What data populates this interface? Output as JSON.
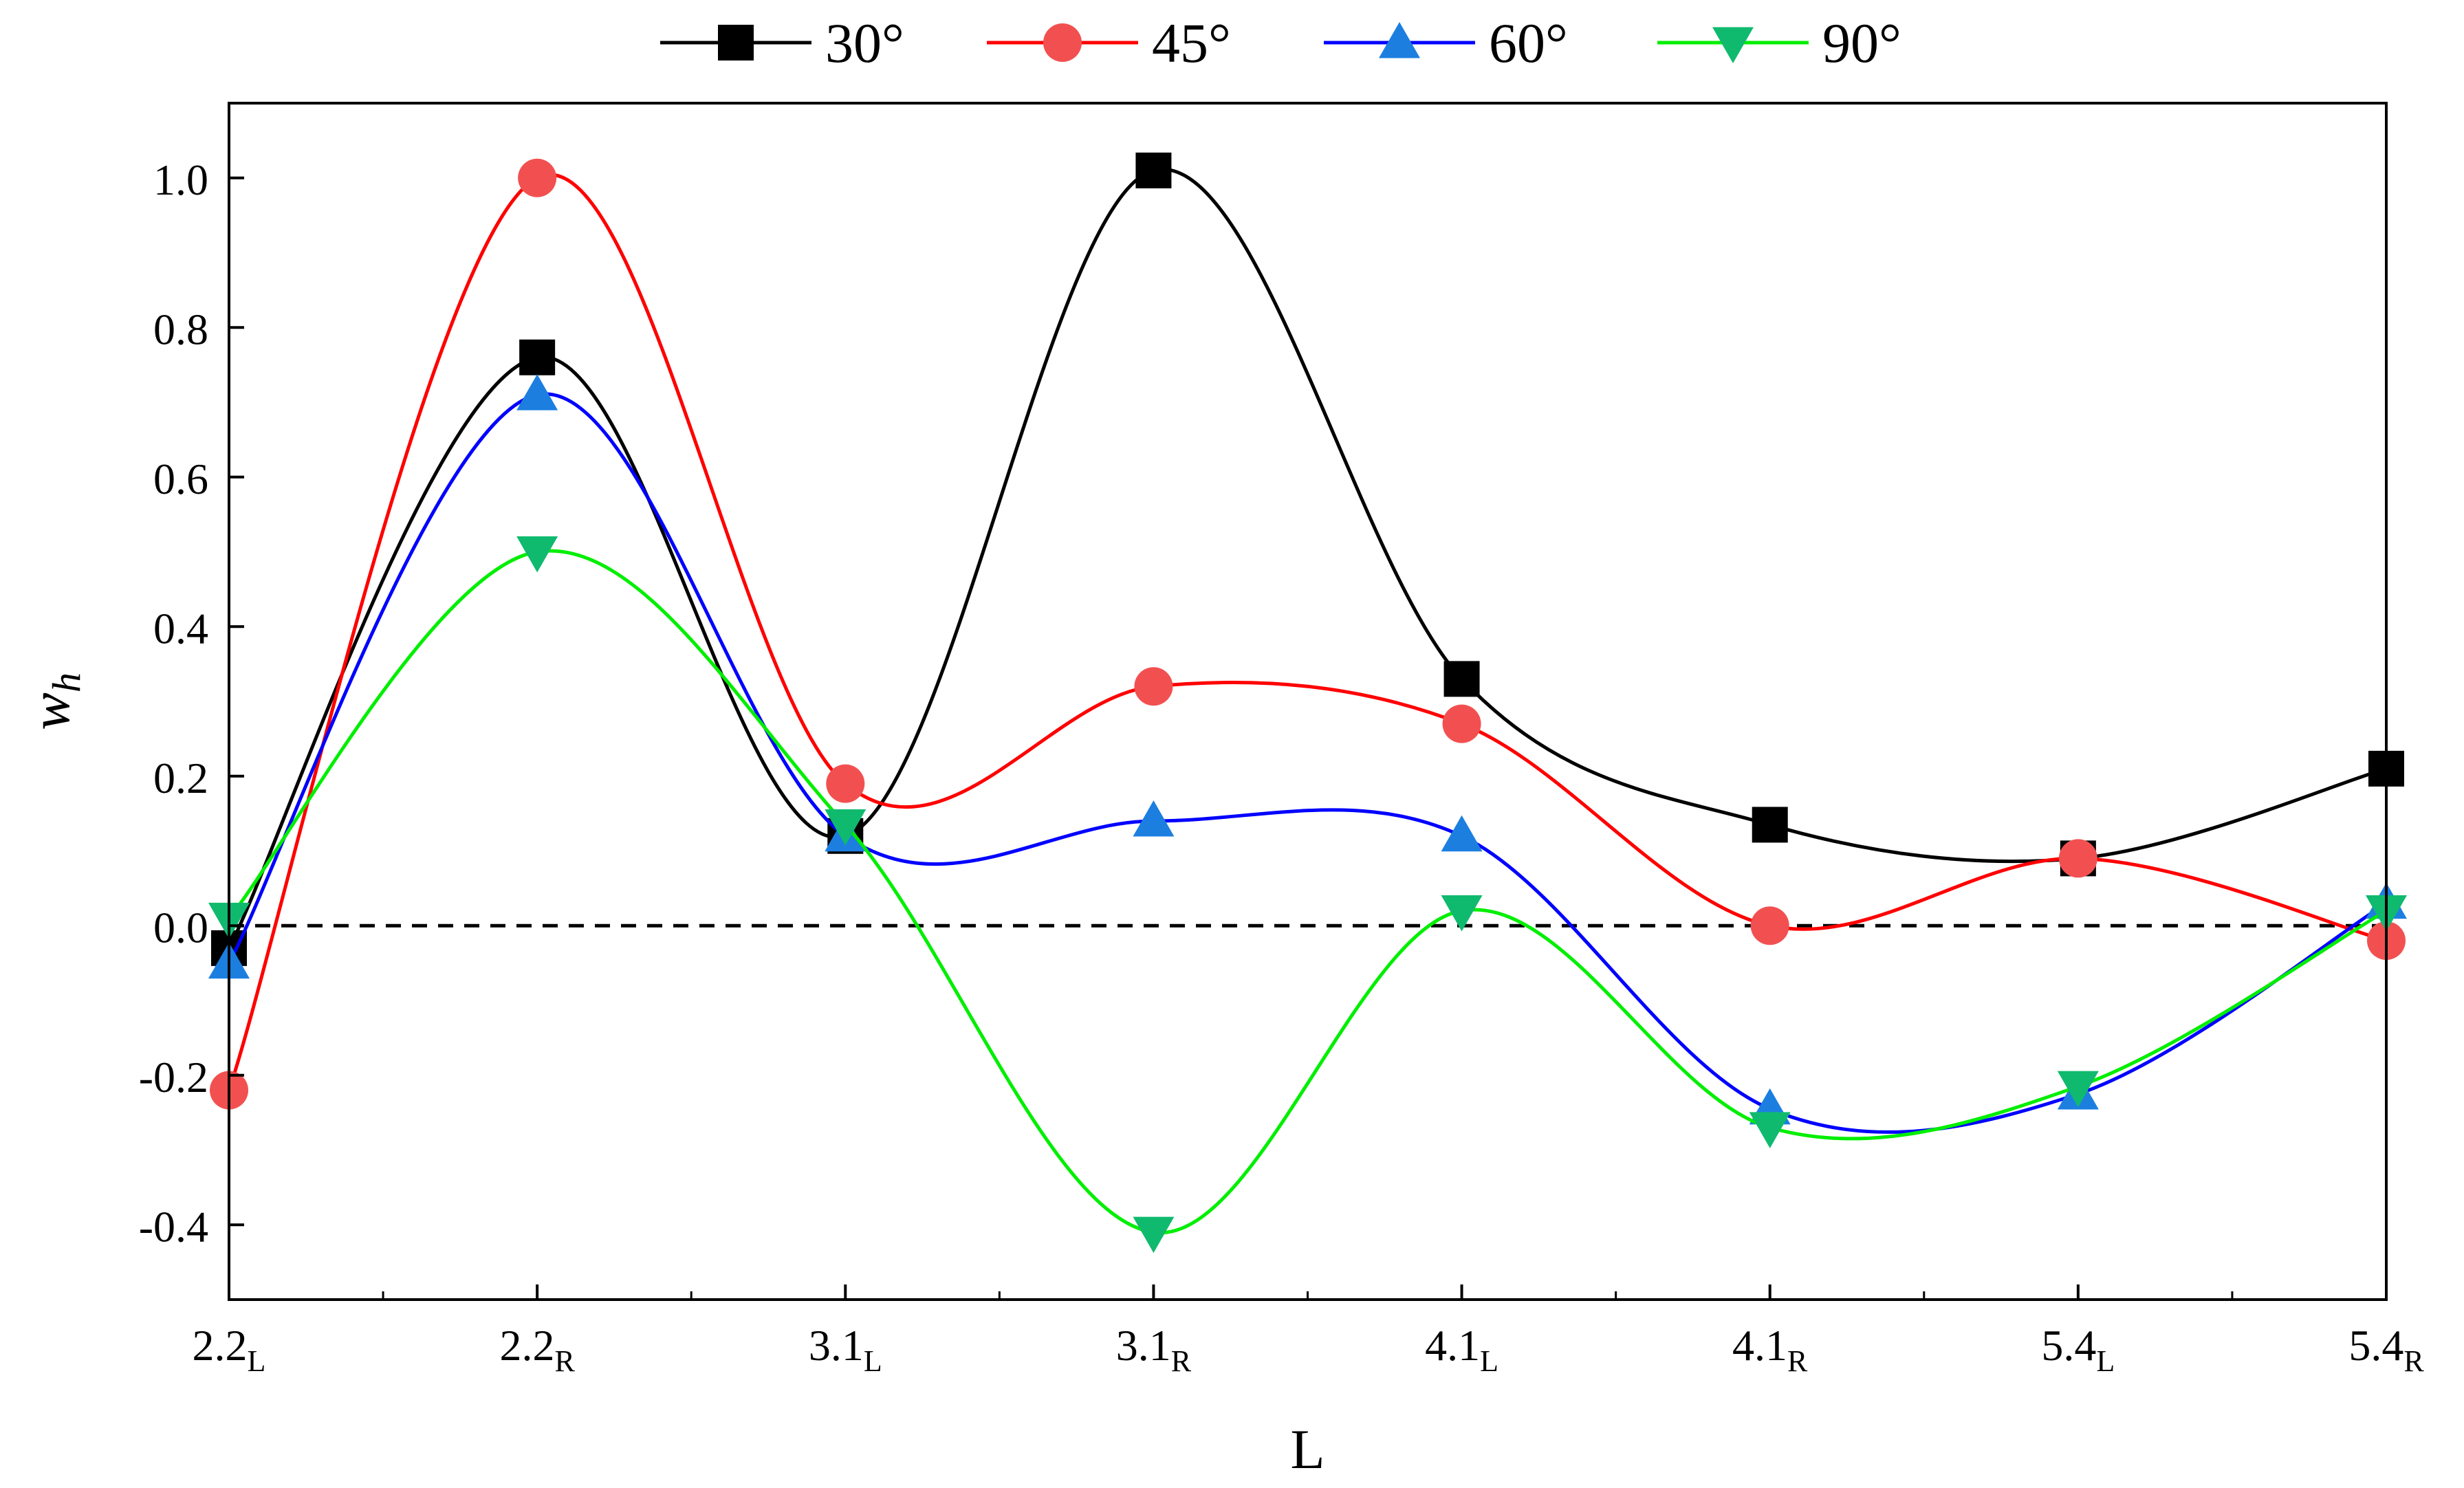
{
  "chart_data": {
    "type": "line",
    "smooth": true,
    "title": "",
    "xlabel": "L",
    "ylabel_main": "w",
    "ylabel_sub": "h",
    "categories": [
      {
        "main": "2.2",
        "sub": "L"
      },
      {
        "main": "2.2",
        "sub": "R"
      },
      {
        "main": "3.1",
        "sub": "L"
      },
      {
        "main": "3.1",
        "sub": "R"
      },
      {
        "main": "4.1",
        "sub": "L"
      },
      {
        "main": "4.1",
        "sub": "R"
      },
      {
        "main": "5.4",
        "sub": "L"
      },
      {
        "main": "5.4",
        "sub": "R"
      }
    ],
    "ylim": [
      -0.5,
      1.1
    ],
    "yticks": [
      -0.4,
      -0.2,
      0.0,
      0.2,
      0.4,
      0.6,
      0.8,
      1.0
    ],
    "ytick_labels": [
      "-0.4",
      "-0.2",
      "0.0",
      "0.2",
      "0.4",
      "0.6",
      "0.8",
      "1.0"
    ],
    "reference_line": {
      "y": 0.0,
      "style": "dashed",
      "color": "#000000"
    },
    "legend_position": "top-center",
    "series": [
      {
        "name": "30°",
        "color": "#000000",
        "marker": "square",
        "values": [
          -0.03,
          0.76,
          0.12,
          1.01,
          0.33,
          0.135,
          0.09,
          0.21
        ]
      },
      {
        "name": "45°",
        "color": "#ff0000",
        "markerColor": "#f25050",
        "marker": "circle",
        "values": [
          -0.22,
          1.0,
          0.19,
          0.32,
          0.27,
          0.0,
          0.09,
          -0.02
        ]
      },
      {
        "name": "60°",
        "color": "#0000ff",
        "markerColor": "#1c7fe0",
        "marker": "triangle-up",
        "values": [
          -0.05,
          0.71,
          0.12,
          0.14,
          0.12,
          -0.245,
          -0.225,
          0.03
        ]
      },
      {
        "name": "90°",
        "color": "#00ee00",
        "markerColor": "#0fba6e",
        "marker": "triangle-down",
        "values": [
          0.01,
          0.5,
          0.135,
          -0.41,
          0.02,
          -0.27,
          -0.215,
          0.02
        ]
      }
    ]
  }
}
